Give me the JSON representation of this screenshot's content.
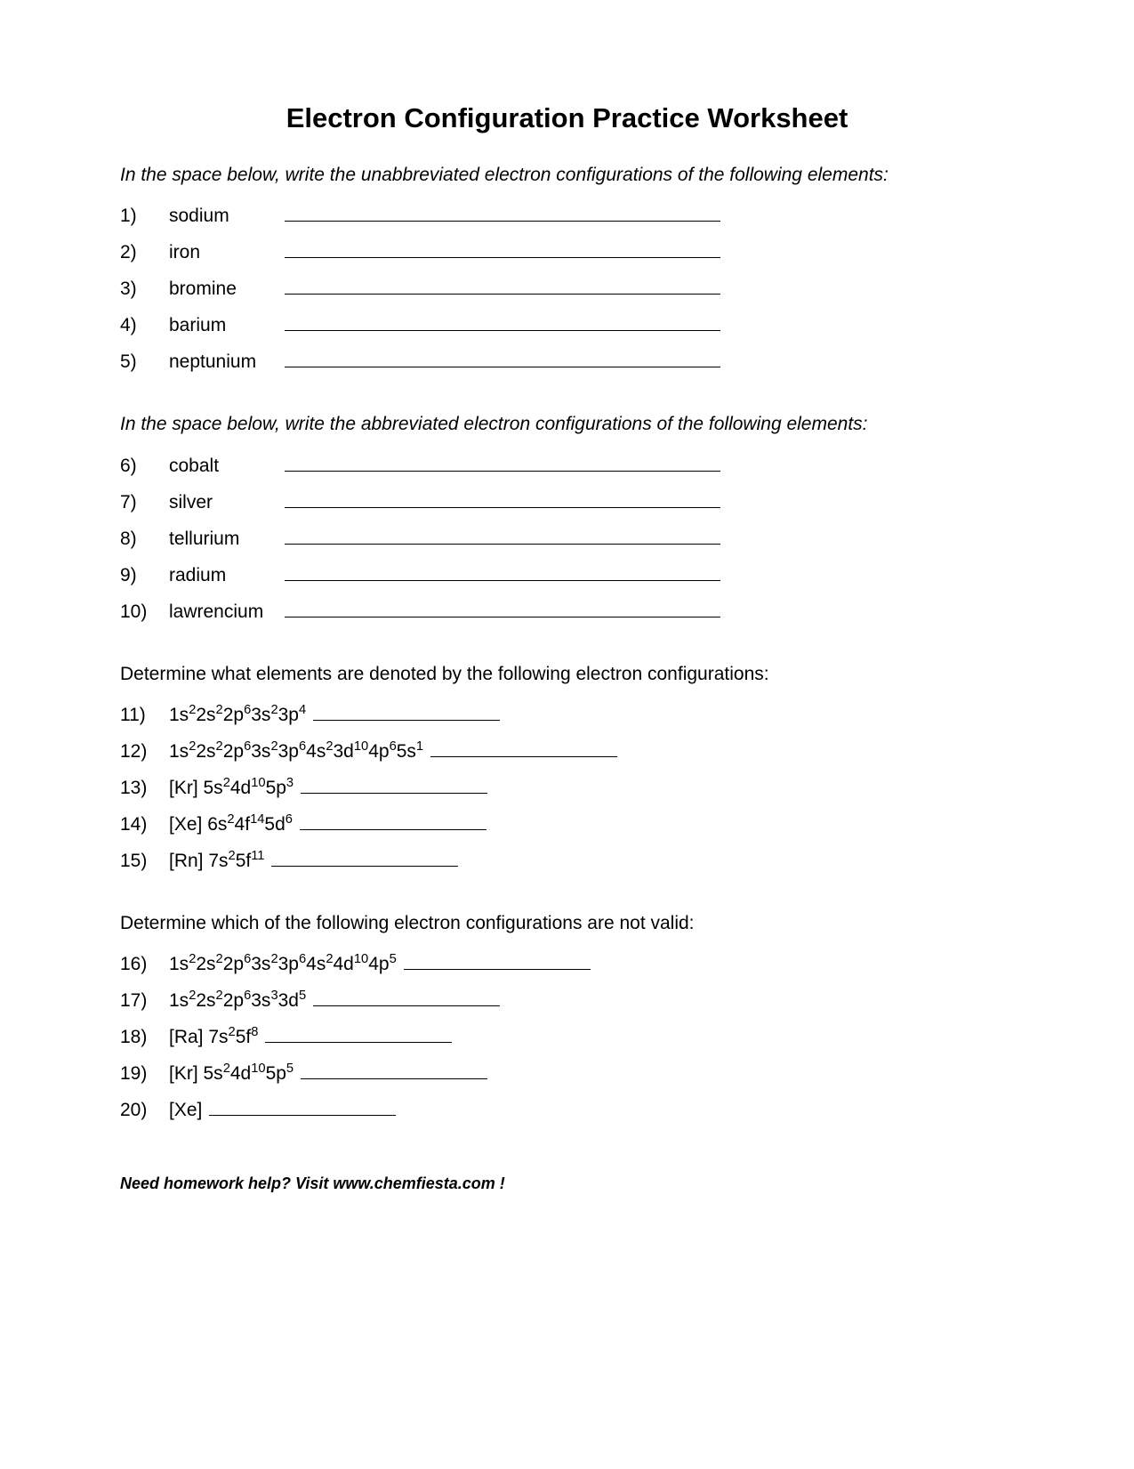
{
  "title": "Electron Configuration Practice Worksheet",
  "typography": {
    "title_fontsize": 31,
    "body_fontsize": 21,
    "footer_fontsize": 18,
    "font_family": "Arial",
    "text_color": "#000000",
    "background_color": "#ffffff"
  },
  "section1": {
    "instructions": "In the space below, write the unabbreviated electron configurations of the following elements:",
    "items": [
      {
        "num": "1)",
        "label": "sodium"
      },
      {
        "num": "2)",
        "label": "iron"
      },
      {
        "num": "3)",
        "label": "bromine"
      },
      {
        "num": "4)",
        "label": "barium"
      },
      {
        "num": "5)",
        "label": "neptunium"
      }
    ],
    "blank_width": 490
  },
  "section2": {
    "instructions": "In the space below, write the abbreviated electron configurations of the following elements:",
    "items": [
      {
        "num": "6)",
        "label": "cobalt"
      },
      {
        "num": "7)",
        "label": "silver"
      },
      {
        "num": "8)",
        "label": "tellurium"
      },
      {
        "num": "9)",
        "label": "radium"
      },
      {
        "num": "10)",
        "label": "lawrencium"
      }
    ],
    "blank_width": 490
  },
  "section3": {
    "instructions": "Determine what elements are denoted by the following electron configurations:",
    "items": [
      {
        "num": "11)",
        "config": [
          {
            "t": "1s",
            "s": "2"
          },
          {
            "t": "2s",
            "s": "2"
          },
          {
            "t": "2p",
            "s": "6"
          },
          {
            "t": "3s",
            "s": "2"
          },
          {
            "t": "3p",
            "s": "4"
          }
        ]
      },
      {
        "num": "12)",
        "config": [
          {
            "t": "1s",
            "s": "2"
          },
          {
            "t": "2s",
            "s": "2"
          },
          {
            "t": "2p",
            "s": "6"
          },
          {
            "t": "3s",
            "s": "2"
          },
          {
            "t": "3p",
            "s": "6"
          },
          {
            "t": "4s",
            "s": "2"
          },
          {
            "t": "3d",
            "s": "10"
          },
          {
            "t": "4p",
            "s": "6"
          },
          {
            "t": "5s",
            "s": "1"
          }
        ]
      },
      {
        "num": "13)",
        "config_prefix": "[Kr] ",
        "config": [
          {
            "t": "5s",
            "s": "2"
          },
          {
            "t": "4d",
            "s": "10"
          },
          {
            "t": "5p",
            "s": "3"
          }
        ]
      },
      {
        "num": "14)",
        "config_prefix": "[Xe] ",
        "config": [
          {
            "t": "6s",
            "s": "2"
          },
          {
            "t": "4f",
            "s": "14"
          },
          {
            "t": "5d",
            "s": "6"
          }
        ]
      },
      {
        "num": "15)",
        "config_prefix": "[Rn]  ",
        "config": [
          {
            "t": "7s",
            "s": "2"
          },
          {
            "t": "5f",
            "s": "11"
          }
        ]
      }
    ],
    "blank_width": 210
  },
  "section4": {
    "instructions": "Determine which of the following electron configurations are not valid:",
    "items": [
      {
        "num": "16)",
        "config": [
          {
            "t": "1s",
            "s": "2"
          },
          {
            "t": "2s",
            "s": "2"
          },
          {
            "t": "2p",
            "s": "6"
          },
          {
            "t": "3s",
            "s": "2"
          },
          {
            "t": "3p",
            "s": "6"
          },
          {
            "t": "4s",
            "s": "2"
          },
          {
            "t": "4d",
            "s": "10"
          },
          {
            "t": "4p",
            "s": "5"
          }
        ]
      },
      {
        "num": "17)",
        "config": [
          {
            "t": "1s",
            "s": "2"
          },
          {
            "t": "2s",
            "s": "2"
          },
          {
            "t": "2p",
            "s": "6"
          },
          {
            "t": "3s",
            "s": "3"
          },
          {
            "t": "3d",
            "s": "5"
          }
        ]
      },
      {
        "num": "18)",
        "config_prefix": "[Ra] ",
        "config": [
          {
            "t": "7s",
            "s": "2"
          },
          {
            "t": "5f",
            "s": "8"
          }
        ]
      },
      {
        "num": "19)",
        "config_prefix": "[Kr]  ",
        "config": [
          {
            "t": "5s",
            "s": "2"
          },
          {
            "t": "4d",
            "s": "10"
          },
          {
            "t": "5p",
            "s": "5"
          }
        ]
      },
      {
        "num": "20)",
        "config_prefix": "[Xe]",
        "config": []
      }
    ],
    "blank_width": 210
  },
  "footer": "Need homework help?  Visit www.chemfiesta.com !"
}
